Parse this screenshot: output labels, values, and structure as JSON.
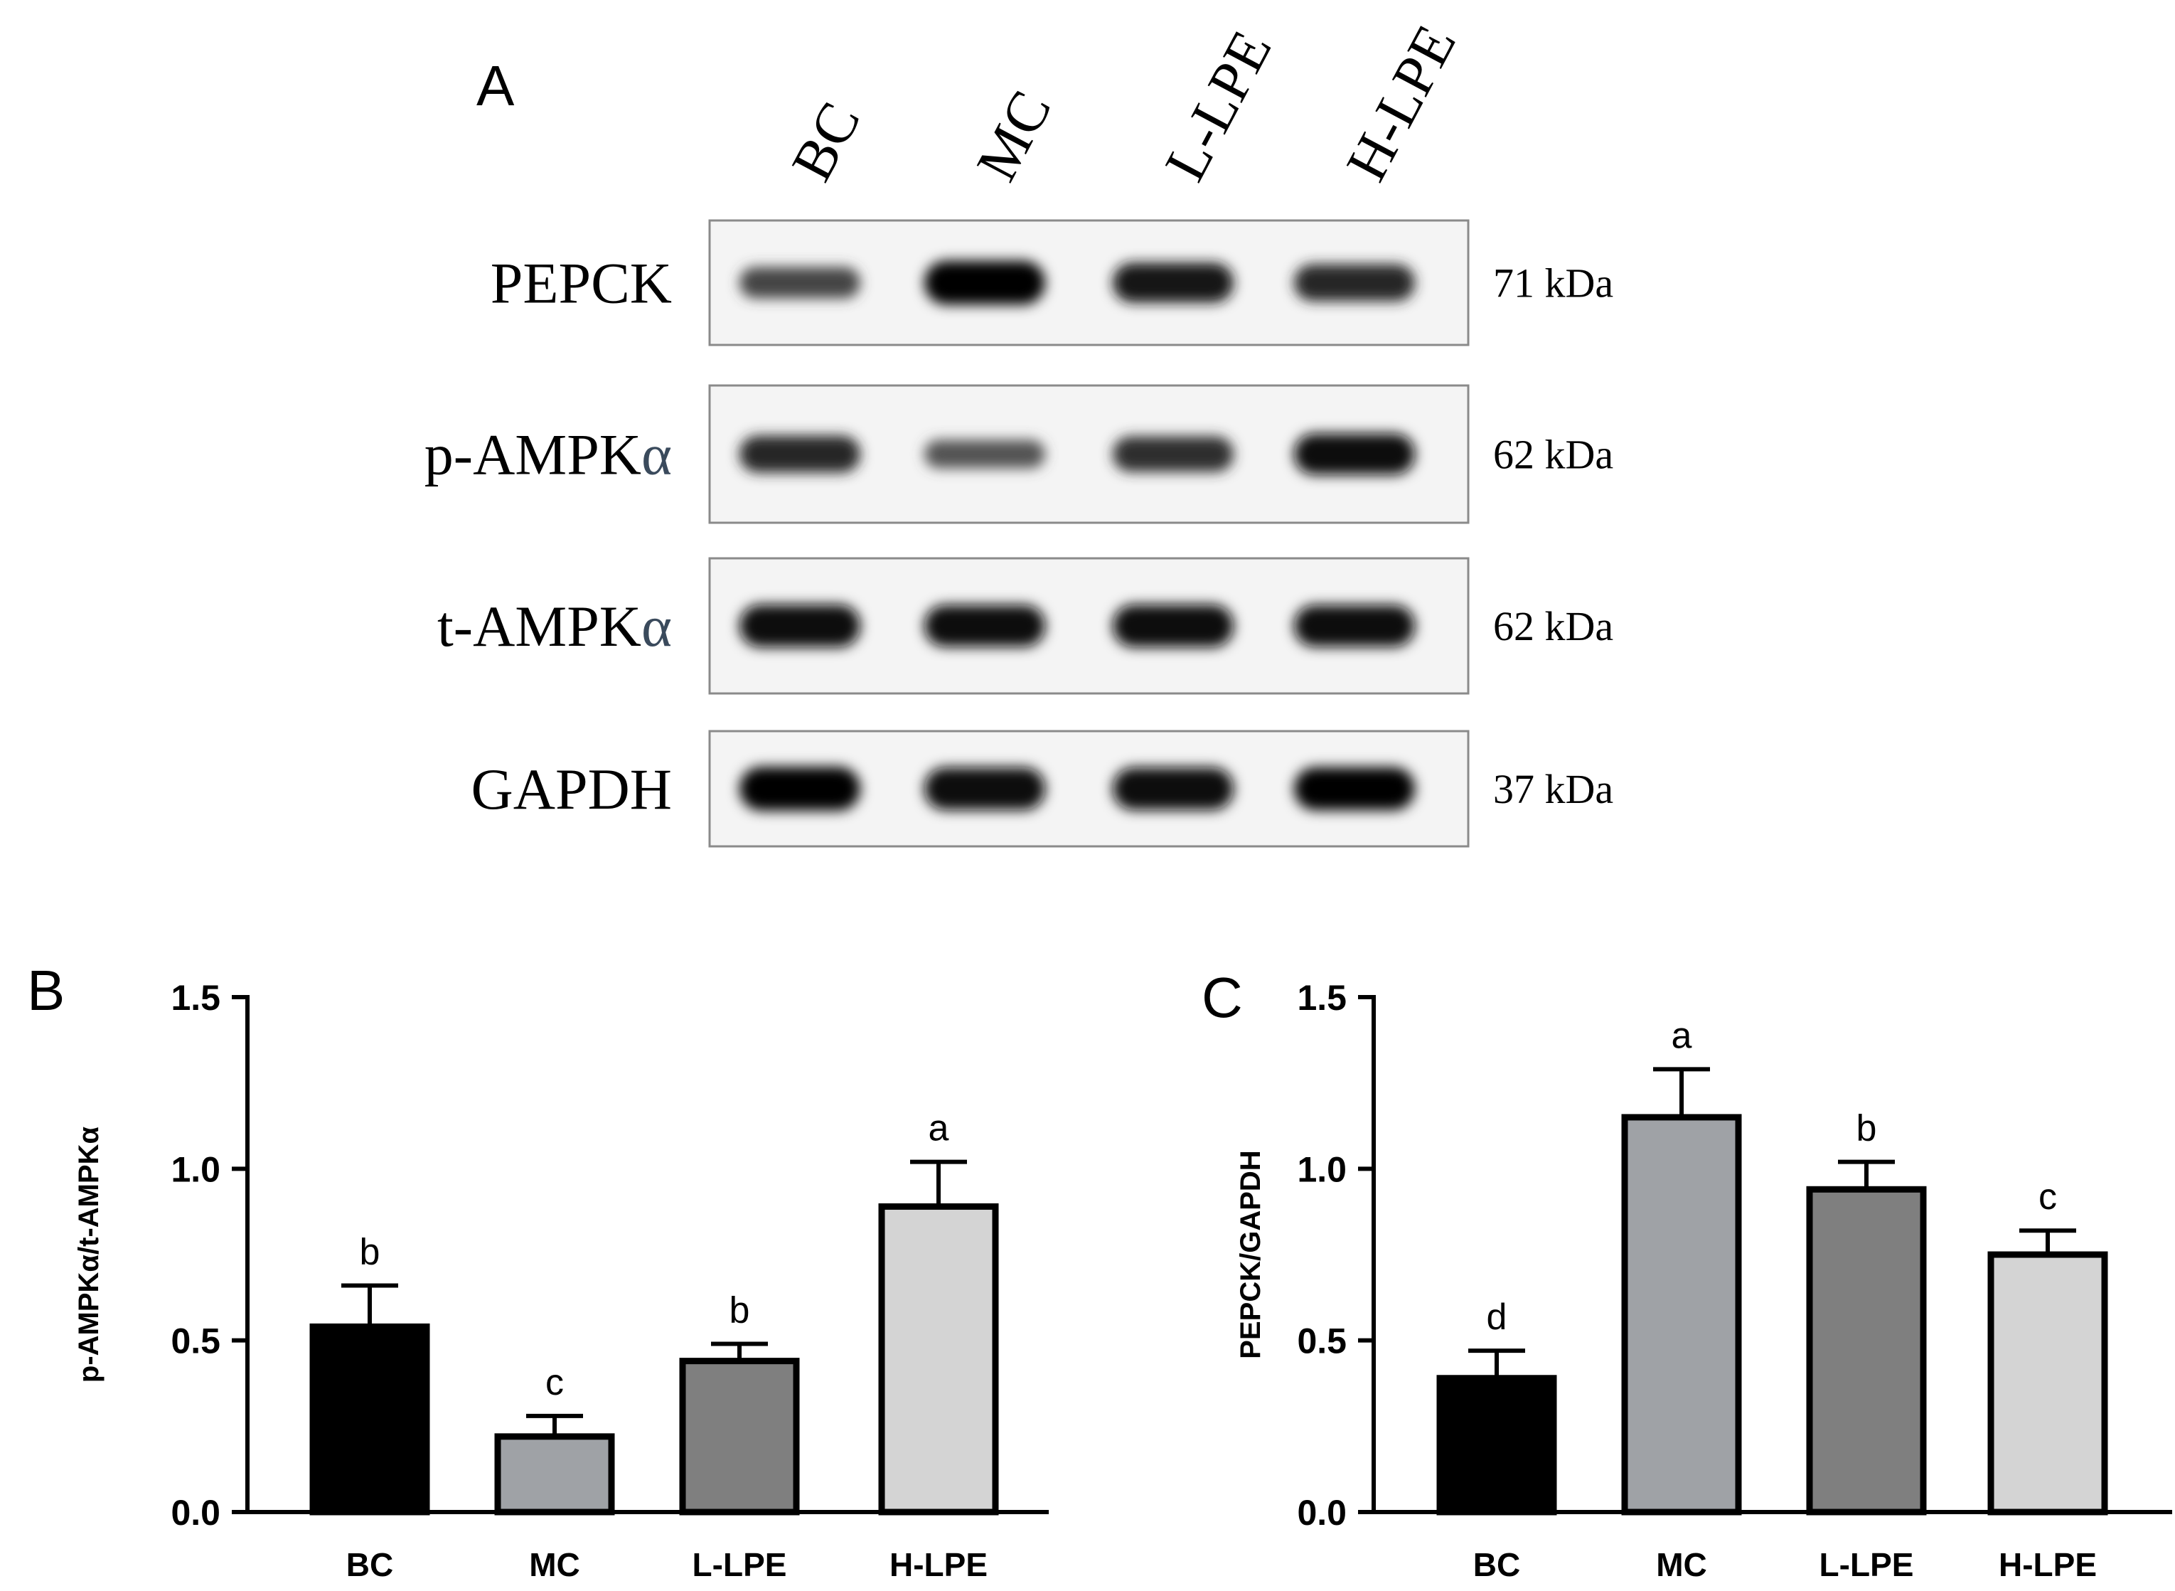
{
  "panel_a": {
    "label": "A",
    "lanes": [
      "BC",
      "MC",
      "L-LPE",
      "H-LPE"
    ],
    "rows": [
      {
        "protein": "PEPCK",
        "protein_base": "PEPCK",
        "protein_suffix": "",
        "kda": "71 kDa",
        "band_intensity": [
          0.55,
          1.0,
          0.85,
          0.75
        ]
      },
      {
        "protein": "p-AMPKα",
        "protein_base": "p-AMPK",
        "protein_suffix": "α",
        "kda": "62 kDa",
        "band_intensity": [
          0.75,
          0.45,
          0.7,
          0.9
        ]
      },
      {
        "protein": "t-AMPKα",
        "protein_base": "t-AMPK",
        "protein_suffix": "α",
        "kda": "62 kDa",
        "band_intensity": [
          0.95,
          0.92,
          0.95,
          0.92
        ]
      },
      {
        "protein": "GAPDH",
        "protein_base": "GAPDH",
        "protein_suffix": "",
        "kda": "37 kDa",
        "band_intensity": [
          1.0,
          0.95,
          0.95,
          0.97
        ]
      }
    ],
    "alpha_color": "#3a4a5c"
  },
  "chart_data": [
    {
      "panel_label": "B",
      "type": "bar",
      "ylabel": "p-AMPKα/t-AMPKα",
      "categories": [
        "BC",
        "MC",
        "L-LPE",
        "H-LPE"
      ],
      "values": [
        0.54,
        0.22,
        0.44,
        0.89
      ],
      "errors": [
        0.12,
        0.06,
        0.05,
        0.13
      ],
      "significance": [
        "b",
        "c",
        "b",
        "a"
      ],
      "colors": [
        "#000000",
        "#9fa2a6",
        "#7f7f7f",
        "#d4d4d4"
      ],
      "ylim": [
        0,
        1.5
      ],
      "yticks": [
        "0.0",
        "0.5",
        "1.0",
        "1.5"
      ],
      "ytick_values": [
        0,
        0.5,
        1.0,
        1.5
      ]
    },
    {
      "panel_label": "C",
      "type": "bar",
      "ylabel": "PEPCK/GAPDH",
      "categories": [
        "BC",
        "MC",
        "L-LPE",
        "H-LPE"
      ],
      "values": [
        0.39,
        1.15,
        0.94,
        0.75
      ],
      "errors": [
        0.08,
        0.14,
        0.08,
        0.07
      ],
      "significance": [
        "d",
        "a",
        "b",
        "c"
      ],
      "colors": [
        "#000000",
        "#9fa2a6",
        "#7f7f7f",
        "#d4d4d4"
      ],
      "ylim": [
        0,
        1.5
      ],
      "yticks": [
        "0.0",
        "0.5",
        "1.0",
        "1.5"
      ],
      "ytick_values": [
        0,
        0.5,
        1.0,
        1.5
      ]
    }
  ]
}
